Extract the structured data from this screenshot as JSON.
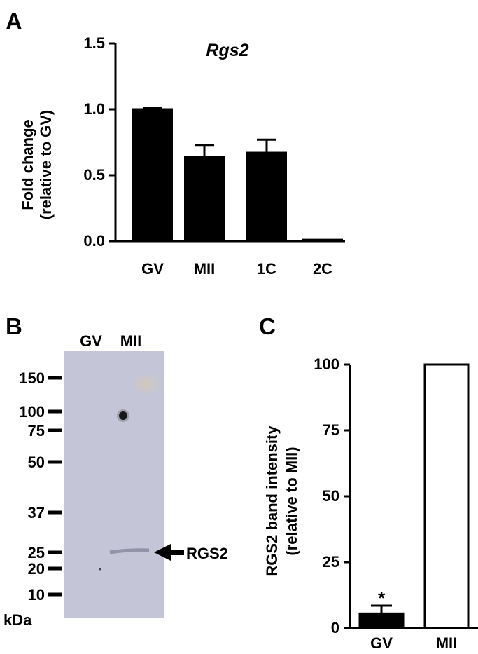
{
  "panel_a": {
    "letter": "A",
    "chart_data": {
      "type": "bar",
      "title": "Rgs2",
      "ylabel_line1": "Fold change",
      "ylabel_line2": "(relative to GV)",
      "xlabel": "",
      "categories": [
        "GV",
        "MII",
        "1C",
        "2C"
      ],
      "values": [
        1.0,
        0.64,
        0.67,
        0.01
      ],
      "errors": [
        0.01,
        0.09,
        0.1,
        0.0
      ],
      "ylim": [
        0,
        1.5
      ],
      "yticks": [
        "0.0",
        "0.5",
        "1.0",
        "1.5"
      ],
      "ytick_values": [
        0,
        0.5,
        1.0,
        1.5
      ],
      "bar_color": "#000000"
    }
  },
  "panel_b": {
    "letter": "B",
    "lanes": [
      "GV",
      "MII"
    ],
    "markers": [
      "150",
      "100",
      "75",
      "50",
      "37",
      "25",
      "20",
      "10"
    ],
    "unit": "kDa",
    "band_label": "RGS2",
    "blot_color": "#c4c5d6"
  },
  "panel_c": {
    "letter": "C",
    "chart_data": {
      "type": "bar",
      "title": "",
      "ylabel_line1": "RGS2 band intensity",
      "ylabel_line2": "(relative to MII)",
      "xlabel": "",
      "categories": [
        "GV",
        "MII"
      ],
      "values": [
        5.5,
        100
      ],
      "errors": [
        3,
        0
      ],
      "fills": [
        "#000000",
        "#ffffff"
      ],
      "annotations": [
        "*",
        ""
      ],
      "ylim": [
        0,
        100
      ],
      "yticks": [
        "0",
        "25",
        "50",
        "75",
        "100"
      ],
      "ytick_values": [
        0,
        25,
        50,
        75,
        100
      ]
    }
  }
}
